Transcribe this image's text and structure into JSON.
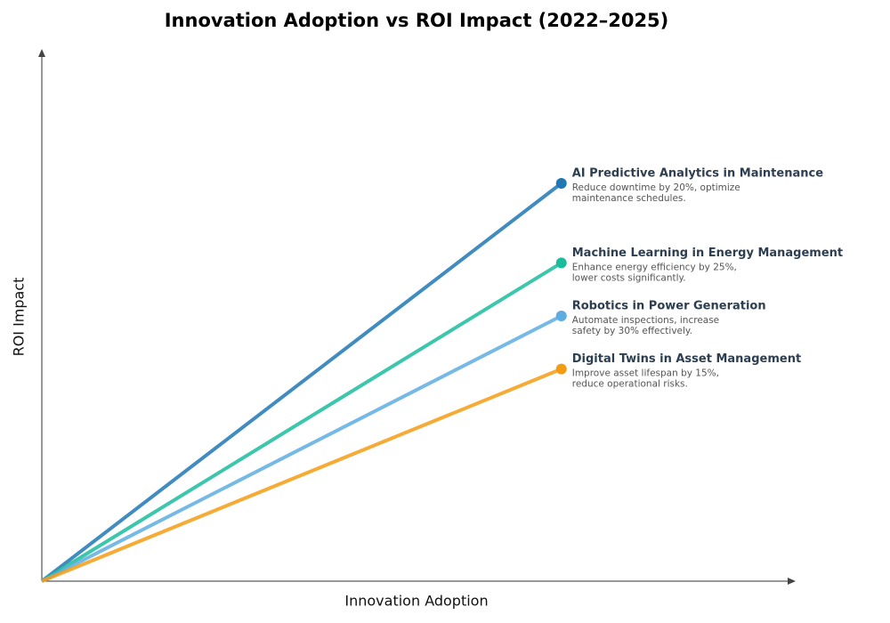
{
  "chart_data": {
    "type": "line",
    "title": "Innovation Adoption vs ROI Impact (2022–2025)",
    "x_label": "Innovation Adoption",
    "y_label": "ROI Impact",
    "xlim": [
      0,
      1
    ],
    "ylim": [
      0,
      1
    ],
    "x": [
      0,
      0.69
    ],
    "series": [
      {
        "name": "AI Predictive Analytics in Maintenance",
        "description": [
          "Reduce downtime by 20%, optimize",
          "maintenance schedules."
        ],
        "color": "#1f77b4",
        "values": [
          0,
          0.75
        ]
      },
      {
        "name": "Machine Learning in Energy Management",
        "description": [
          "Enhance energy efficiency by 25%,",
          "lower costs significantly."
        ],
        "color": "#1abc9c",
        "values": [
          0,
          0.6
        ]
      },
      {
        "name": "Robotics in Power Generation",
        "description": [
          "Automate inspections, increase",
          "safety by 30% effectively."
        ],
        "color": "#5dade2",
        "values": [
          0,
          0.5
        ]
      },
      {
        "name": "Digital Twins in Asset Management",
        "description": [
          "Improve asset lifespan by 15%,",
          "reduce operational risks."
        ],
        "color": "#f39c12",
        "values": [
          0,
          0.4
        ]
      }
    ]
  }
}
